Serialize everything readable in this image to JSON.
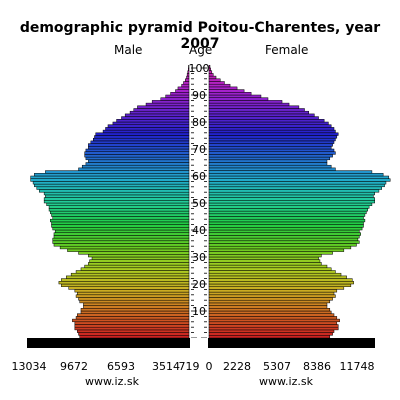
{
  "chart_data": {
    "type": "bar",
    "title": "demographic pyramid Poitou-Charentes, year 2007",
    "left_header": "Male",
    "center_header": "Age",
    "right_header": "Female",
    "age_tick_labels": [
      "10",
      "20",
      "30",
      "40",
      "50",
      "60",
      "70",
      "80",
      "90",
      "100"
    ],
    "male_axis_ticks": [
      "13034",
      "9672",
      "6593",
      "3514",
      "719"
    ],
    "female_axis_ticks": [
      "0",
      "2228",
      "5307",
      "8386",
      "11748"
    ],
    "source_left": "www.iz.sk",
    "source_right": "www.iz.sk",
    "male_xlim": [
      0,
      13034
    ],
    "female_xlim": [
      0,
      11748
    ],
    "ages": [
      0,
      1,
      2,
      3,
      4,
      5,
      6,
      7,
      8,
      9,
      10,
      11,
      12,
      13,
      14,
      15,
      16,
      17,
      18,
      19,
      20,
      21,
      22,
      23,
      24,
      25,
      26,
      27,
      28,
      29,
      30,
      31,
      32,
      33,
      34,
      35,
      36,
      37,
      38,
      39,
      40,
      41,
      42,
      43,
      44,
      45,
      46,
      47,
      48,
      49,
      50,
      51,
      52,
      53,
      54,
      55,
      56,
      57,
      58,
      59,
      60,
      61,
      62,
      63,
      64,
      65,
      66,
      67,
      68,
      69,
      70,
      71,
      72,
      73,
      74,
      75,
      76,
      77,
      78,
      79,
      80,
      81,
      82,
      83,
      84,
      85,
      86,
      87,
      88,
      89,
      90,
      91,
      92,
      93,
      94,
      95,
      96,
      97,
      98,
      99,
      100
    ],
    "male": [
      8900,
      9000,
      9100,
      9300,
      9300,
      9300,
      9500,
      9200,
      9100,
      8800,
      8800,
      8600,
      8600,
      8900,
      9000,
      9200,
      9100,
      9300,
      9800,
      10400,
      10600,
      10400,
      10000,
      9600,
      9200,
      8800,
      8500,
      8200,
      8100,
      7900,
      8200,
      9000,
      9900,
      10500,
      11000,
      11100,
      11100,
      11000,
      11000,
      10900,
      11100,
      11200,
      11200,
      11300,
      11100,
      11200,
      11300,
      11400,
      11400,
      11600,
      11800,
      11800,
      11700,
      11800,
      12200,
      12400,
      12600,
      12700,
      12900,
      12900,
      12600,
      11700,
      9000,
      8700,
      8400,
      8200,
      8400,
      8500,
      8500,
      8400,
      8200,
      8200,
      8000,
      7800,
      7700,
      7600,
      7000,
      6800,
      6600,
      6200,
      5900,
      5500,
      5200,
      4800,
      4500,
      4200,
      3500,
      3000,
      2300,
      1900,
      1500,
      1100,
      900,
      600,
      450,
      300,
      200,
      150,
      100,
      60,
      40
    ],
    "female": [
      8600,
      8800,
      8900,
      9200,
      9200,
      9100,
      9300,
      9100,
      8900,
      8700,
      8600,
      8400,
      8400,
      8600,
      8800,
      9000,
      8900,
      9100,
      9600,
      10100,
      10300,
      10200,
      9800,
      9400,
      9000,
      8700,
      8400,
      8000,
      7900,
      7800,
      8000,
      8800,
      9600,
      10100,
      10500,
      10700,
      10600,
      10700,
      10800,
      10700,
      10900,
      11000,
      11000,
      11100,
      11000,
      11100,
      11200,
      11300,
      11400,
      11600,
      11800,
      11800,
      11700,
      11800,
      12100,
      12300,
      12500,
      12600,
      12900,
      12800,
      12400,
      11600,
      9000,
      8700,
      8400,
      8400,
      8600,
      8800,
      9000,
      8900,
      8700,
      8800,
      8900,
      9000,
      9100,
      9200,
      9000,
      8900,
      8700,
      8500,
      8200,
      7800,
      7500,
      7100,
      6800,
      6400,
      5700,
      5200,
      4200,
      3700,
      3000,
      2500,
      2000,
      1500,
      1100,
      800,
      500,
      300,
      200,
      120,
      70
    ],
    "colors": {
      "spectrum": [
        "#cc2222",
        "#cc6622",
        "#ccaa22",
        "#aacc22",
        "#66cc22",
        "#22cc44",
        "#22cc99",
        "#22aacc",
        "#2266cc",
        "#2222cc",
        "#6622cc",
        "#aa22cc",
        "#cc22aa"
      ],
      "bar_outline": "#000000",
      "axis_bar": "#000000"
    }
  }
}
